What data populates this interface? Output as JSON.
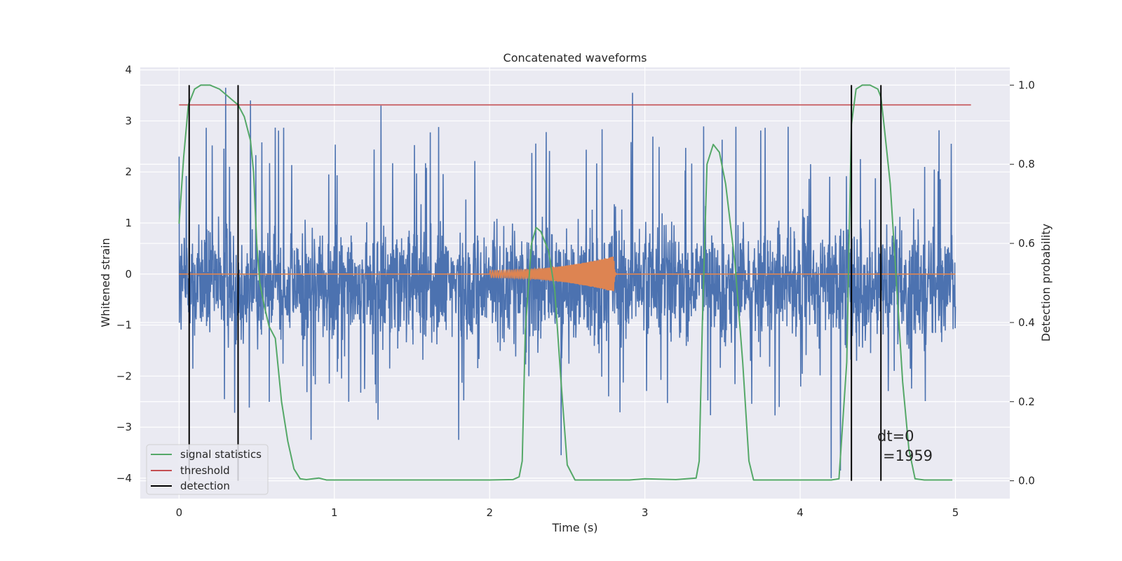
{
  "chart_data": {
    "type": "line",
    "title": "Concatenated waveforms",
    "xlabel": "Time (s)",
    "ylabel": "Whitened strain",
    "y2label": "Detection probability",
    "xlim": [
      -0.25,
      5.35
    ],
    "ylim": [
      -4.4,
      4.05
    ],
    "y2lim": [
      -0.045,
      1.045
    ],
    "x_ticks": [
      0,
      1,
      2,
      3,
      4,
      5
    ],
    "y_ticks": [
      -4,
      -3,
      -2,
      -1,
      0,
      1,
      2,
      3,
      4
    ],
    "y2_ticks": [
      0.0,
      0.2,
      0.4,
      0.6,
      0.8,
      1.0
    ],
    "grid": true,
    "legend_position": "lower-left",
    "colors": {
      "strain": "#4c72b0",
      "waveform": "#dd8452",
      "signal_statistics": "#55a868",
      "threshold": "#c44e52",
      "detection": "#000000",
      "background": "#eaeaf2",
      "grid": "#ffffff"
    },
    "series": [
      {
        "key": "strain",
        "axis": "left",
        "x_range": [
          0,
          5
        ],
        "typical_amplitude": [
          -1.0,
          0.6
        ],
        "spikes": [
          [
            0.0,
            2.3
          ],
          [
            0.3,
            3.65
          ],
          [
            0.46,
            3.4
          ],
          [
            0.85,
            -3.25
          ],
          [
            1.3,
            3.3
          ],
          [
            1.8,
            -3.25
          ],
          [
            2.46,
            -3.55
          ],
          [
            2.92,
            3.55
          ],
          [
            4.2,
            -4.0
          ],
          [
            4.26,
            -3.85
          ]
        ]
      },
      {
        "key": "waveform",
        "axis": "left",
        "x": [
          0,
          2.0,
          2.8,
          5.0
        ],
        "amplitude": [
          0,
          0.07,
          0.35,
          0
        ],
        "chirp_start": 2.0,
        "merger": 2.8
      },
      {
        "name": "signal statistics",
        "axis": "right",
        "x": [
          0.0,
          0.03,
          0.06,
          0.1,
          0.14,
          0.2,
          0.26,
          0.32,
          0.38,
          0.42,
          0.46,
          0.48,
          0.5,
          0.52,
          0.55,
          0.58,
          0.62,
          0.66,
          0.7,
          0.74,
          0.78,
          0.82,
          0.9,
          0.95,
          1.0,
          1.5,
          2.0,
          2.15,
          2.19,
          2.21,
          2.23,
          2.27,
          2.3,
          2.33,
          2.38,
          2.42,
          2.46,
          2.5,
          2.55,
          2.9,
          3.0,
          3.2,
          3.33,
          3.35,
          3.37,
          3.4,
          3.44,
          3.48,
          3.52,
          3.58,
          3.63,
          3.67,
          3.7,
          3.9,
          4.2,
          4.25,
          4.3,
          4.33,
          4.36,
          4.4,
          4.45,
          4.5,
          4.52,
          4.54,
          4.58,
          4.62,
          4.66,
          4.7,
          4.74,
          4.8,
          4.9,
          4.98
        ],
        "values": [
          0.65,
          0.82,
          0.95,
          0.99,
          1.0,
          1.0,
          0.99,
          0.97,
          0.95,
          0.92,
          0.86,
          0.78,
          0.6,
          0.5,
          0.44,
          0.39,
          0.36,
          0.2,
          0.1,
          0.03,
          0.005,
          0.003,
          0.007,
          0.002,
          0.002,
          0.002,
          0.002,
          0.003,
          0.01,
          0.05,
          0.38,
          0.6,
          0.64,
          0.63,
          0.58,
          0.48,
          0.25,
          0.04,
          0.002,
          0.002,
          0.005,
          0.003,
          0.007,
          0.05,
          0.4,
          0.8,
          0.85,
          0.83,
          0.75,
          0.55,
          0.3,
          0.05,
          0.002,
          0.002,
          0.002,
          0.005,
          0.3,
          0.9,
          0.99,
          1.0,
          1.0,
          0.99,
          0.97,
          0.9,
          0.75,
          0.5,
          0.25,
          0.08,
          0.005,
          0.002,
          0.002,
          0.002
        ]
      },
      {
        "name": "threshold",
        "axis": "right",
        "x": [
          0.0,
          5.1
        ],
        "values": [
          0.95,
          0.95
        ]
      },
      {
        "name": "detection",
        "axis": "right",
        "vertical_lines_x": [
          0.065,
          0.38,
          4.33,
          4.52
        ],
        "y_range": [
          0.0,
          1.0
        ]
      }
    ],
    "annotation": {
      "line1": "dt=0",
      "line2": "=1959",
      "x": 4.51,
      "y": 0.095
    }
  }
}
